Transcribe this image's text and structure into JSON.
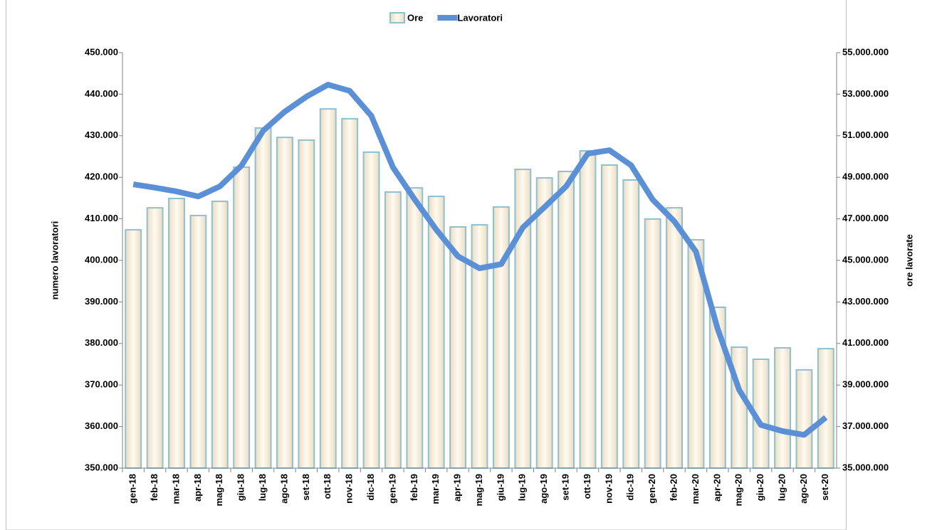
{
  "chart_data": {
    "type": "bar-line",
    "y_label": "numero lavoratori",
    "y2_label": "ore lavorate",
    "categories": [
      "gen-18",
      "feb-18",
      "mar-18",
      "apr-18",
      "mag-18",
      "giu-18",
      "lug-18",
      "ago-18",
      "set-18",
      "ott-18",
      "nov-18",
      "dic-18",
      "gen-19",
      "feb-19",
      "mar-19",
      "apr-19",
      "mag-19",
      "giu-19",
      "lug-19",
      "ago-19",
      "set-19",
      "ott-19",
      "nov-19",
      "dic-19",
      "gen-20",
      "feb-20",
      "mar-20",
      "apr-20",
      "mag-20",
      "giu-20",
      "lug-20",
      "ago-20",
      "set-20"
    ],
    "series": [
      {
        "name": "Ore",
        "type": "bar",
        "axis": "y2",
        "color": "#fbf1df",
        "values": [
          46470000,
          47530000,
          47980000,
          47160000,
          47840000,
          49490000,
          51370000,
          50920000,
          50790000,
          52290000,
          51820000,
          50210000,
          48290000,
          48490000,
          48080000,
          46610000,
          46710000,
          47570000,
          49380000,
          48970000,
          49280000,
          50270000,
          49590000,
          48870000,
          46990000,
          47530000,
          45990000,
          42740000,
          40820000,
          40240000,
          40790000,
          39730000,
          40750000
        ]
      },
      {
        "name": "Lavoratori",
        "type": "line",
        "axis": "y",
        "color": "#5b8fd6",
        "values": [
          418300,
          417500,
          416600,
          415400,
          417800,
          422800,
          431200,
          435800,
          439400,
          442300,
          440800,
          434800,
          422400,
          414700,
          407400,
          401000,
          398100,
          399100,
          407900,
          412800,
          417800,
          425700,
          426500,
          422900,
          414600,
          409400,
          402100,
          383600,
          368800,
          360400,
          358900,
          358000,
          362200
        ]
      }
    ],
    "ylim": [
      350000,
      450000
    ],
    "yticks": [
      {
        "value": 350000,
        "label": "350.000"
      },
      {
        "value": 360000,
        "label": "360.000"
      },
      {
        "value": 370000,
        "label": "370.000"
      },
      {
        "value": 380000,
        "label": "380.000"
      },
      {
        "value": 390000,
        "label": "390.000"
      },
      {
        "value": 400000,
        "label": "400.000"
      },
      {
        "value": 410000,
        "label": "410.000"
      },
      {
        "value": 420000,
        "label": "420.000"
      },
      {
        "value": 430000,
        "label": "430.000"
      },
      {
        "value": 440000,
        "label": "440.000"
      },
      {
        "value": 450000,
        "label": "450.000"
      }
    ],
    "y2lim": [
      35000000,
      55000000
    ],
    "y2ticks": [
      {
        "value": 35000000,
        "label": "35.000.000"
      },
      {
        "value": 37000000,
        "label": "37.000.000"
      },
      {
        "value": 39000000,
        "label": "39.000.000"
      },
      {
        "value": 41000000,
        "label": "41.000.000"
      },
      {
        "value": 43000000,
        "label": "43.000.000"
      },
      {
        "value": 45000000,
        "label": "45.000.000"
      },
      {
        "value": 47000000,
        "label": "47.000.000"
      },
      {
        "value": 49000000,
        "label": "49.000.000"
      },
      {
        "value": 51000000,
        "label": "51.000.000"
      },
      {
        "value": 53000000,
        "label": "53.000.000"
      },
      {
        "value": 55000000,
        "label": "55.000.000"
      }
    ],
    "legend": "top"
  }
}
